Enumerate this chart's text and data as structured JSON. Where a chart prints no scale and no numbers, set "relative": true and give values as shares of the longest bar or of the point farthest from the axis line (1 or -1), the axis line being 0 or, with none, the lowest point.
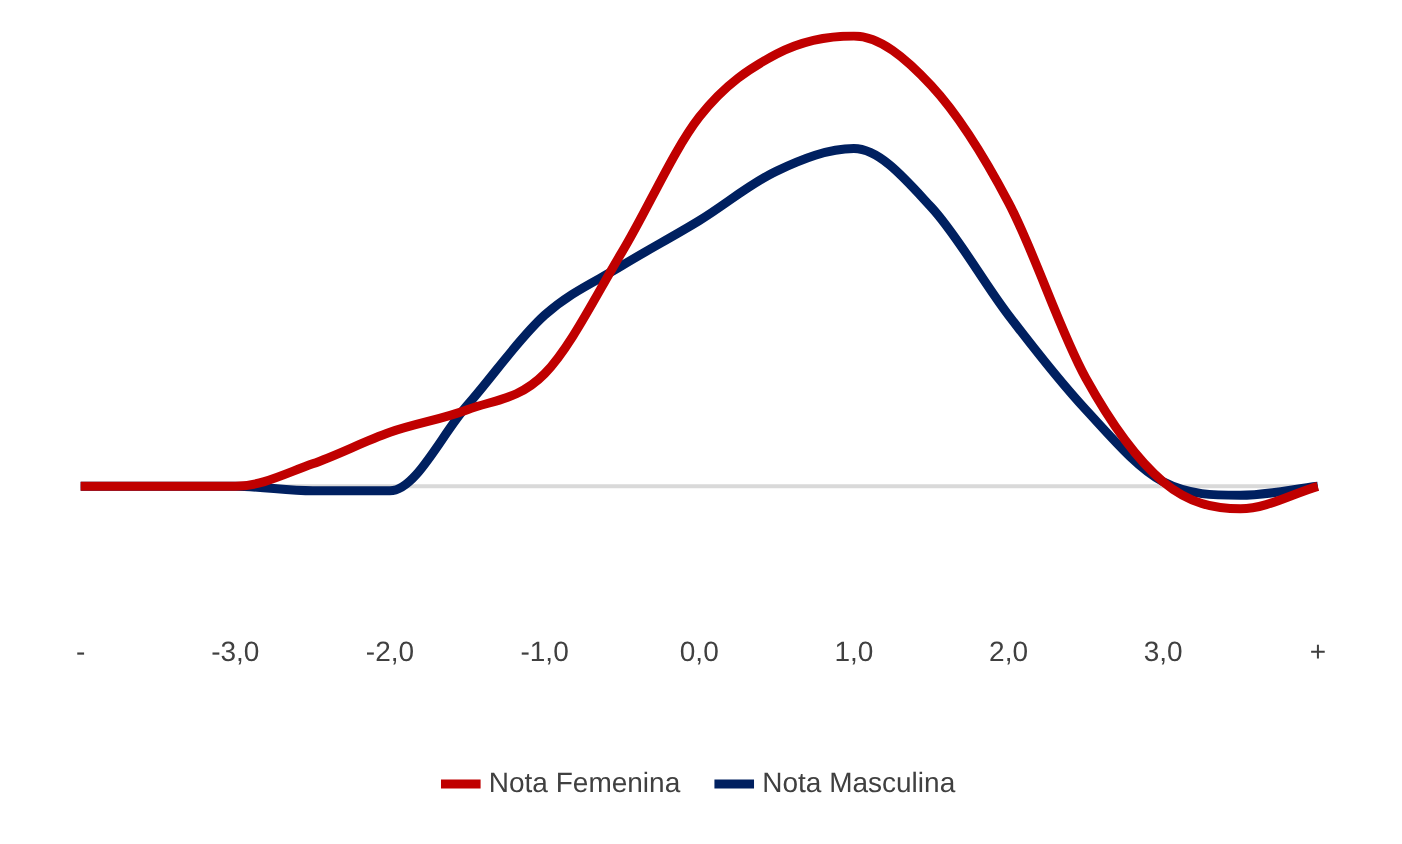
{
  "chart_data": {
    "type": "line",
    "relative": true,
    "categories": [
      "-",
      null,
      "-3,0",
      null,
      "-2,0",
      null,
      "-1,0",
      null,
      "0,0",
      null,
      "1,0",
      null,
      "2,0",
      null,
      "3,0",
      null,
      "+"
    ],
    "series": [
      {
        "name": "Nota Femenina",
        "color": "#c00000",
        "values": [
          0,
          0,
          0,
          0.05,
          0.12,
          0.17,
          0.25,
          0.52,
          0.82,
          0.96,
          1.0,
          0.89,
          0.63,
          0.24,
          0.01,
          -0.05,
          0
        ]
      },
      {
        "name": "Nota Masculina",
        "color": "#002060",
        "values": [
          0,
          0,
          0,
          -0.01,
          -0.01,
          0.18,
          0.38,
          0.49,
          0.59,
          0.7,
          0.75,
          0.62,
          0.38,
          0.17,
          0.01,
          -0.02,
          0
        ]
      }
    ],
    "legend": "bottom",
    "grid": false,
    "marker": "none",
    "line_style": "solid"
  }
}
